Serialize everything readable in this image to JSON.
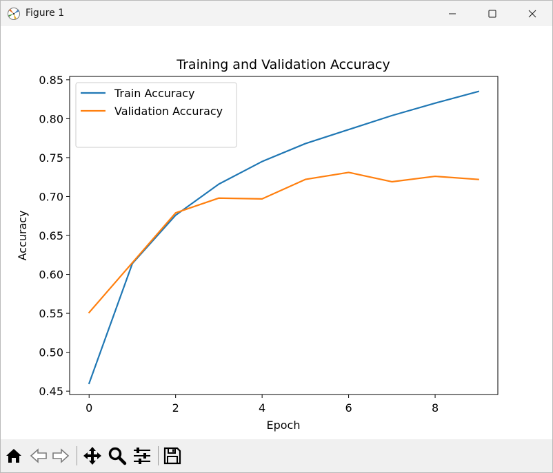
{
  "window": {
    "title": "Figure 1",
    "icons": {
      "app": "matplotlib-icon",
      "minimize": "minimize-icon",
      "maximize": "maximize-icon",
      "close": "close-icon"
    }
  },
  "toolbar": {
    "tools": [
      {
        "name": "home",
        "icon": "home-icon"
      },
      {
        "name": "back",
        "icon": "back-arrow-icon"
      },
      {
        "name": "forward",
        "icon": "forward-arrow-icon"
      },
      {
        "name": "pan",
        "icon": "pan-move-icon"
      },
      {
        "name": "zoom",
        "icon": "zoom-magnifier-icon"
      },
      {
        "name": "configure-subplots",
        "icon": "sliders-icon"
      },
      {
        "name": "save",
        "icon": "save-floppy-icon"
      }
    ]
  },
  "chart_data": {
    "type": "line",
    "title": "Training and Validation Accuracy",
    "xlabel": "Epoch",
    "ylabel": "Accuracy",
    "x": [
      0,
      1,
      2,
      3,
      4,
      5,
      6,
      7,
      8,
      9
    ],
    "xlim": [
      -0.45,
      9.45
    ],
    "ylim": [
      0.4457,
      0.8543
    ],
    "xticks": [
      0,
      2,
      4,
      6,
      8
    ],
    "yticks": [
      0.45,
      0.5,
      0.55,
      0.6,
      0.65,
      0.7,
      0.75,
      0.8,
      0.85
    ],
    "ytick_labels": [
      "0.45",
      "0.50",
      "0.55",
      "0.60",
      "0.65",
      "0.70",
      "0.75",
      "0.80",
      "0.85"
    ],
    "xtick_labels": [
      "0",
      "2",
      "4",
      "6",
      "8"
    ],
    "grid": false,
    "legend_position": "upper-left",
    "series": [
      {
        "name": "Train Accuracy",
        "color": "#1f77b4",
        "values": [
          0.46,
          0.614,
          0.676,
          0.716,
          0.745,
          0.768,
          0.786,
          0.804,
          0.82,
          0.835
        ]
      },
      {
        "name": "Validation Accuracy",
        "color": "#ff7f0e",
        "values": [
          0.551,
          0.615,
          0.679,
          0.698,
          0.697,
          0.722,
          0.731,
          0.719,
          0.726,
          0.722
        ]
      }
    ]
  }
}
